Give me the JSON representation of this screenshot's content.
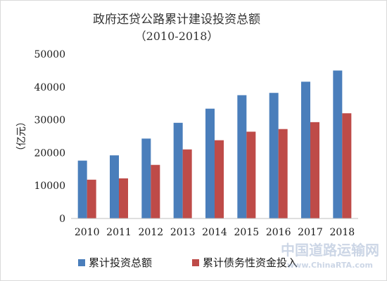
{
  "chart_data": {
    "type": "bar",
    "title": "政府还贷公路累计建设投资总额",
    "subtitle": "（2010-2018）",
    "ylabel": "（亿元）",
    "xlabel": "",
    "categories": [
      "2010",
      "2011",
      "2012",
      "2013",
      "2014",
      "2015",
      "2016",
      "2017",
      "2018"
    ],
    "ylim": [
      0,
      50000
    ],
    "yticks": [
      0,
      10000,
      20000,
      30000,
      40000,
      50000
    ],
    "grid": false,
    "legend_position": "bottom",
    "series": [
      {
        "name": "累计投资总额",
        "color": "#4a7ebb",
        "values": [
          17600,
          19200,
          24300,
          29100,
          33400,
          37500,
          38200,
          41600,
          45000
        ]
      },
      {
        "name": "累计债务性资金投入",
        "color": "#be4b48",
        "values": [
          11800,
          12200,
          16300,
          21000,
          23800,
          26400,
          27200,
          29300,
          32000
        ]
      }
    ]
  },
  "watermark": {
    "main": "中国道路运输网",
    "sub": "www.ChinaRTA.com"
  }
}
